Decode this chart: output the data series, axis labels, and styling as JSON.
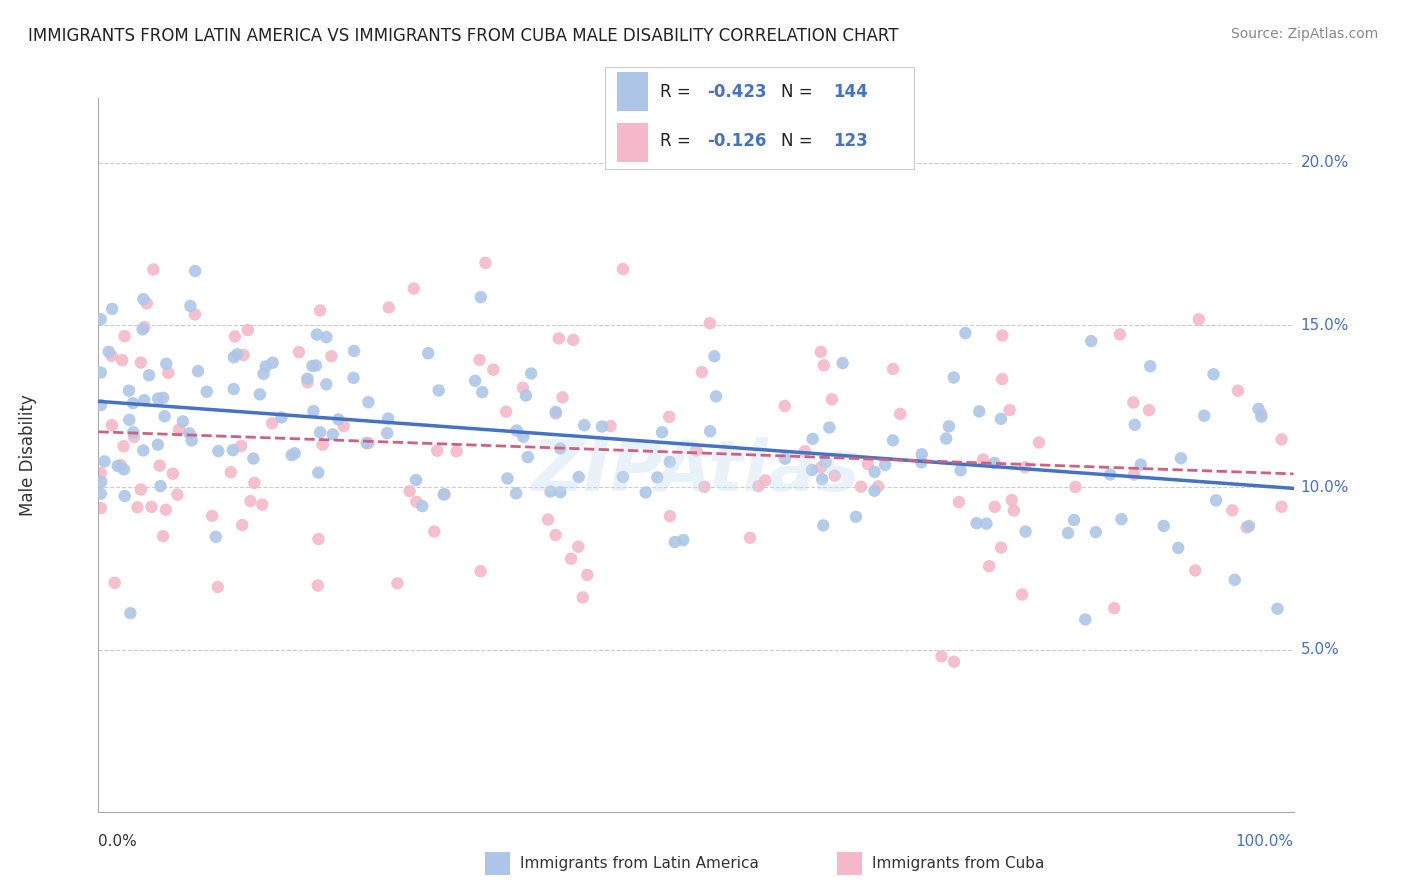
{
  "title": "IMMIGRANTS FROM LATIN AMERICA VS IMMIGRANTS FROM CUBA MALE DISABILITY CORRELATION CHART",
  "source": "Source: ZipAtlas.com",
  "ylabel": "Male Disability",
  "series1_label": "Immigrants from Latin America",
  "series2_label": "Immigrants from Cuba",
  "series1_R": -0.423,
  "series1_N": 144,
  "series2_R": -0.126,
  "series2_N": 123,
  "series1_color": "#adc6e8",
  "series2_color": "#f4b8c8",
  "series1_line_color": "#4472c4",
  "series2_line_color": "#d06080",
  "ylim": [
    0,
    22
  ],
  "xlim": [
    0,
    100
  ],
  "ytick_vals": [
    5,
    10,
    15,
    20
  ],
  "ytick_labels": [
    "5.0%",
    "10.0%",
    "15.0%",
    "20.0%"
  ],
  "background_color": "#ffffff",
  "grid_color": "#cccccc",
  "title_color": "#222222",
  "source_color": "#888888",
  "legend_color": "#4472c4",
  "text_color": "#333333",
  "watermark_color": "#c8ddf0",
  "watermark_alpha": 0.4,
  "series1_seed": 42,
  "series2_seed": 99,
  "series1_y_center": 11.5,
  "series1_y_spread": 2.2,
  "series2_y_center": 10.8,
  "series2_y_spread": 2.5
}
